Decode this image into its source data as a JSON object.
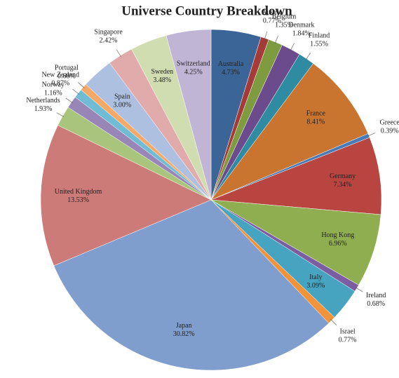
{
  "chart_data": {
    "type": "pie",
    "title": "Universe Country Breakdown",
    "categories": [
      "Australia",
      "Austria",
      "Belgium",
      "Denmark",
      "Finland",
      "France",
      "Greece",
      "Germany",
      "Hong Kong",
      "Ireland",
      "Italy",
      "Israel",
      "Japan",
      "United Kingdom",
      "Netherlands",
      "Norway",
      "New Zealand",
      "Portugal",
      "Spain",
      "Singapore",
      "Sweden",
      "Switzerland"
    ],
    "values": [
      4.73,
      0.77,
      1.35,
      1.84,
      1.55,
      8.41,
      0.39,
      7.34,
      6.96,
      0.68,
      3.09,
      0.77,
      30.82,
      13.53,
      1.93,
      1.16,
      0.87,
      0.68,
      3.0,
      2.42,
      3.48,
      4.25
    ],
    "value_labels": [
      "4.73%",
      "0.77%",
      "1.35%",
      "1.84%",
      "1.55%",
      "8.41%",
      "0.39%",
      "7.34%",
      "6.96%",
      "0.68%",
      "3.09%",
      "0.77%",
      "30.82%",
      "13.53%",
      "1.93%",
      "1.16%",
      "0.87%",
      "0.68%",
      "3.00%",
      "2.42%",
      "3.48%",
      "4.25%"
    ],
    "colors": [
      "#3c6597",
      "#a43b38",
      "#7f9b3f",
      "#6b4b8b",
      "#2f8ba1",
      "#c9742f",
      "#4a7bb6",
      "#b94541",
      "#8fae4f",
      "#7b5ea1",
      "#46a4c0",
      "#f1933b",
      "#7f9dcd",
      "#cc7b79",
      "#a9c47b",
      "#9887b6",
      "#6fbcd4",
      "#f5a969",
      "#aec0e0",
      "#e0abaa",
      "#d0ddb1",
      "#c1b5d5"
    ]
  }
}
